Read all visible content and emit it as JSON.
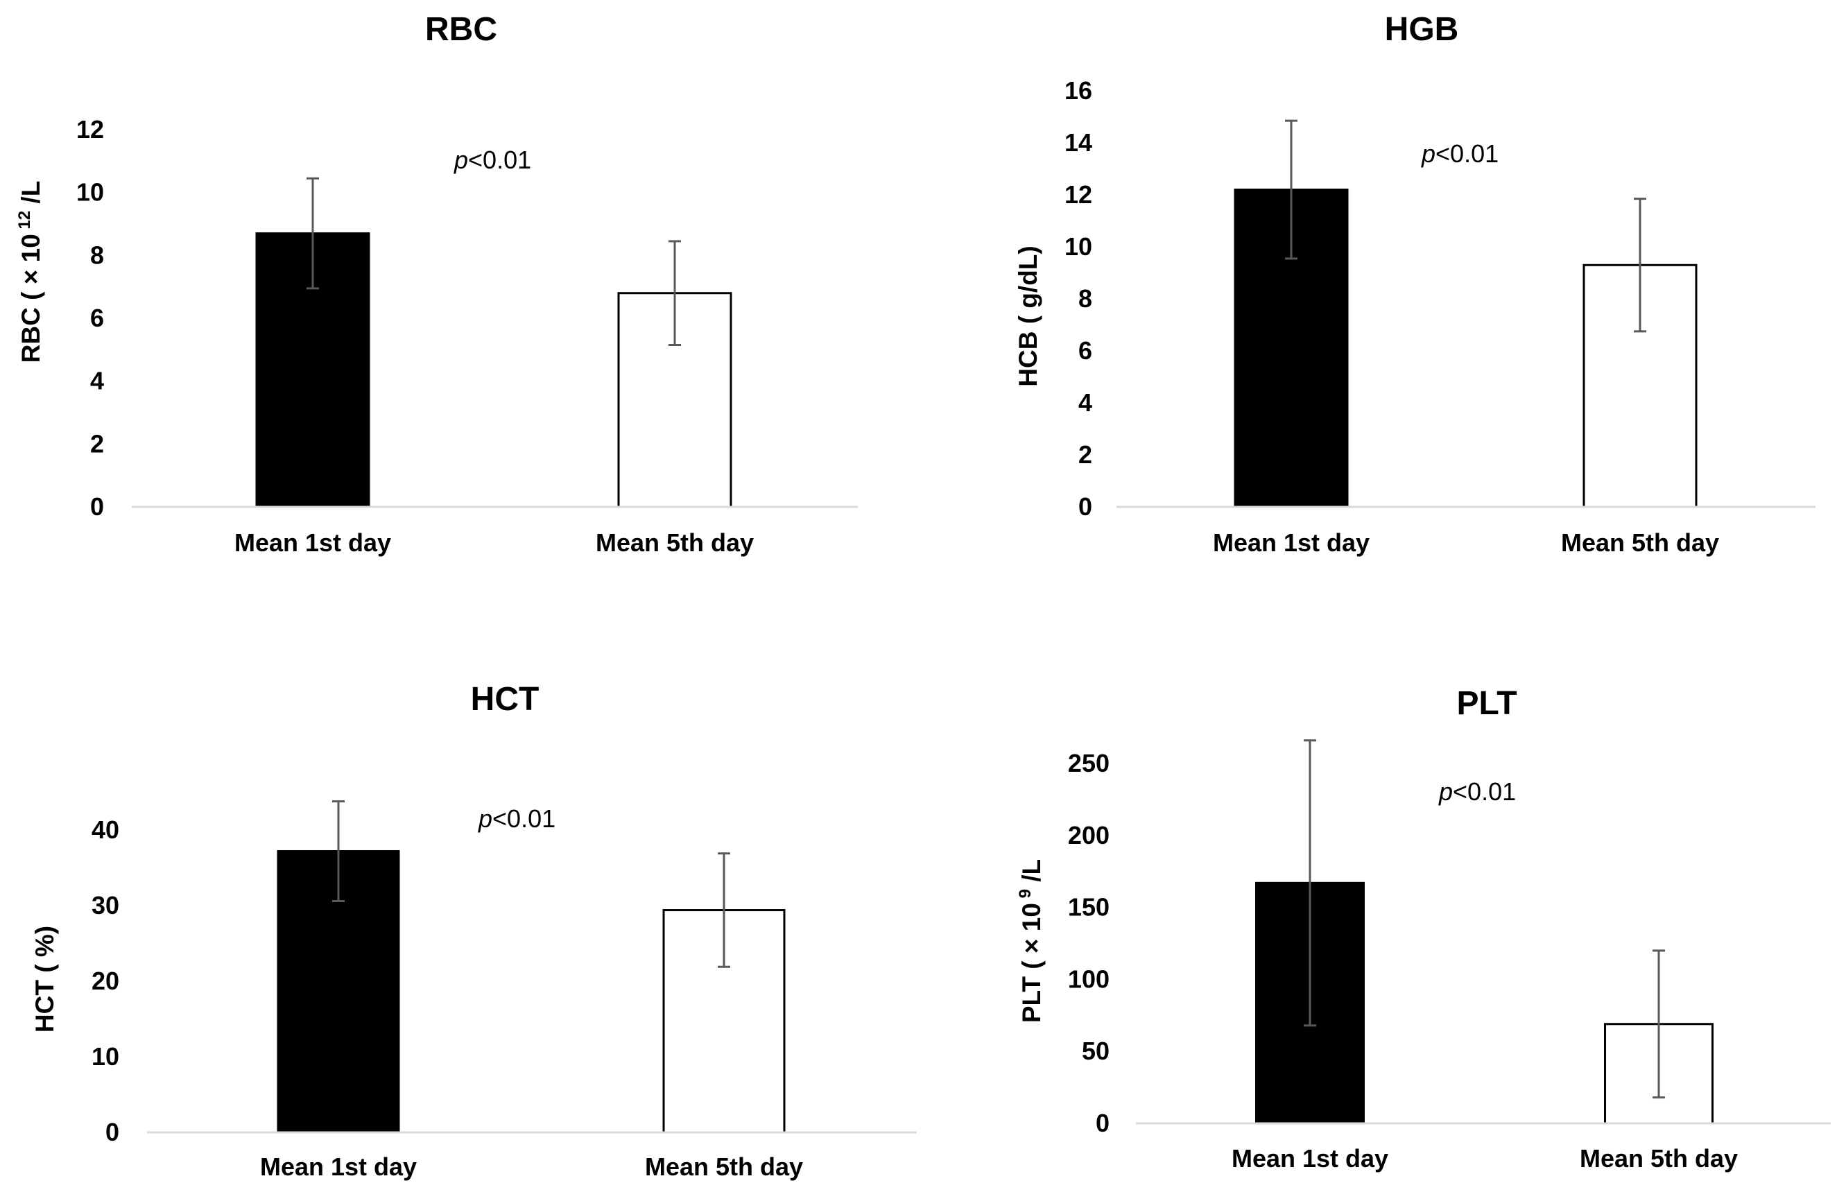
{
  "chart_data": [
    {
      "type": "bar",
      "title": "RBC",
      "ylabel": {
        "pre": "RBC ( × 10",
        "sup": " 12",
        "post": " /L"
      },
      "categories": [
        "Mean 1st day",
        "Mean 5th day"
      ],
      "values": [
        8.7,
        6.8
      ],
      "errors": [
        1.75,
        1.65
      ],
      "ylim": [
        0,
        12
      ],
      "yticks": [
        0,
        2,
        4,
        6,
        8,
        10,
        12
      ],
      "annotation": {
        "italic": "p",
        "rest": "<0.01"
      },
      "fills": [
        "#000000",
        "#ffffff"
      ]
    },
    {
      "type": "bar",
      "title": "HGB",
      "ylabel": {
        "pre": "HCB ( g/dL)",
        "sup": "",
        "post": ""
      },
      "categories": [
        "Mean 1st day",
        "Mean 5th day"
      ],
      "values": [
        12.2,
        9.3
      ],
      "errors": [
        2.65,
        2.55
      ],
      "ylim": [
        0,
        16
      ],
      "yticks": [
        0,
        2,
        4,
        6,
        8,
        10,
        12,
        14,
        16
      ],
      "annotation": {
        "italic": "p",
        "rest": "<0.01"
      },
      "fills": [
        "#000000",
        "#ffffff"
      ]
    },
    {
      "type": "bar",
      "title": "HCT",
      "ylabel": {
        "pre": "HCT ( %)",
        "sup": "",
        "post": ""
      },
      "categories": [
        "Mean 1st day",
        "Mean 5th day"
      ],
      "values": [
        37.2,
        29.4
      ],
      "errors": [
        6.6,
        7.5
      ],
      "ylim": [
        0,
        40
      ],
      "yticks": [
        0,
        10,
        20,
        30,
        40
      ],
      "annotation": {
        "italic": "p",
        "rest": "<0.01"
      },
      "fills": [
        "#000000",
        "#ffffff"
      ]
    },
    {
      "type": "bar",
      "title": "PLT",
      "ylabel": {
        "pre": "PLT (  × 10",
        "sup": " 9",
        "post": " /L"
      },
      "categories": [
        "Mean 1st day",
        "Mean 5th day"
      ],
      "values": [
        167,
        69
      ],
      "errors": [
        99,
        51
      ],
      "ylim": [
        0,
        250
      ],
      "yticks": [
        0,
        50,
        100,
        150,
        200,
        250
      ],
      "annotation": {
        "italic": "p",
        "rest": "<0.01"
      },
      "fills": [
        "#000000",
        "#ffffff"
      ]
    }
  ]
}
